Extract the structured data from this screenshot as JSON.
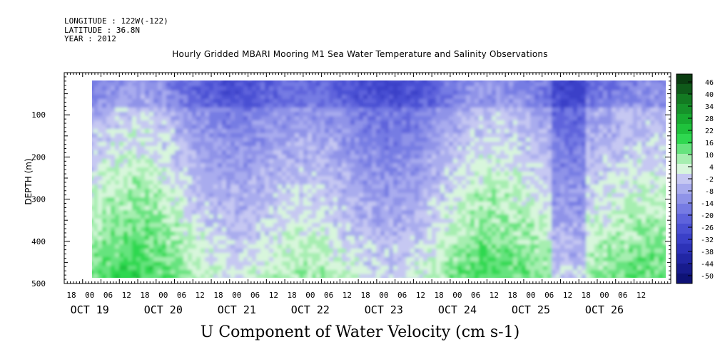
{
  "header": {
    "longitude": "LONGITUDE : 122W(-122)",
    "latitude": "LATITUDE : 36.8N",
    "year": "YEAR : 2012"
  },
  "chart_data": {
    "type": "heatmap",
    "title": "Hourly Gridded MBARI Mooring M1 Sea Water Temperature and Salinity Observations",
    "xlabel": "U Component of Water Velocity (cm s-1)",
    "ylabel": "DEPTH (m)",
    "ylim": [
      500,
      0
    ],
    "y_ticks": [
      100,
      200,
      300,
      400,
      500
    ],
    "x_hour_ticks": [
      "18",
      "00",
      "06",
      "12",
      "18",
      "00",
      "06",
      "12",
      "18",
      "00",
      "06",
      "12",
      "18",
      "00",
      "06",
      "12",
      "18",
      "00",
      "06",
      "12",
      "18",
      "00",
      "06",
      "12",
      "18",
      "00",
      "06",
      "12",
      "18",
      "00",
      "06",
      "12"
    ],
    "x_day_labels": [
      "OCT 19",
      "OCT 20",
      "OCT 21",
      "OCT 22",
      "OCT 23",
      "OCT 24",
      "OCT 25",
      "OCT 26"
    ],
    "colorbar": {
      "ticks": [
        "46",
        "40",
        "34",
        "28",
        "22",
        "16",
        "10",
        "4",
        "-2",
        "-8",
        "-14",
        "-20",
        "-26",
        "-32",
        "-38",
        "-44",
        "-50"
      ],
      "colors": [
        "#0b3d12",
        "#0f5a1a",
        "#137a22",
        "#16922a",
        "#18ab31",
        "#1fc23c",
        "#2fd850",
        "#66e37e",
        "#a6eeb0",
        "#d8f6dc",
        "#c6c8f2",
        "#a9acee",
        "#8f93e8",
        "#767be3",
        "#5e63dc",
        "#4a50d3",
        "#3a40c8",
        "#2d32b8",
        "#2126a4",
        "#171b8d",
        "#0e1276"
      ],
      "range": [
        -50,
        46
      ]
    },
    "grid": false,
    "data_description_bands": [
      {
        "start": "OCT 20 00",
        "end": "OCT 20 18",
        "surface": "blue",
        "deep": "green"
      },
      {
        "start": "OCT 20 18",
        "end": "OCT 21 00",
        "surface": "blue",
        "deep": "blue"
      },
      {
        "start": "OCT 21 00",
        "end": "OCT 22 00",
        "surface": "blue",
        "deep": "green"
      },
      {
        "start": "OCT 22 00",
        "end": "OCT 23 00",
        "surface": "blue",
        "deep": "green"
      },
      {
        "start": "OCT 23 00",
        "end": "OCT 24 00",
        "surface": "blue",
        "deep": "green"
      },
      {
        "start": "OCT 24 00",
        "end": "OCT 25 00",
        "surface": "blue",
        "deep": "green"
      },
      {
        "start": "OCT 25 00",
        "end": "OCT 26 18",
        "surface": "blue",
        "deep": "green"
      }
    ]
  }
}
